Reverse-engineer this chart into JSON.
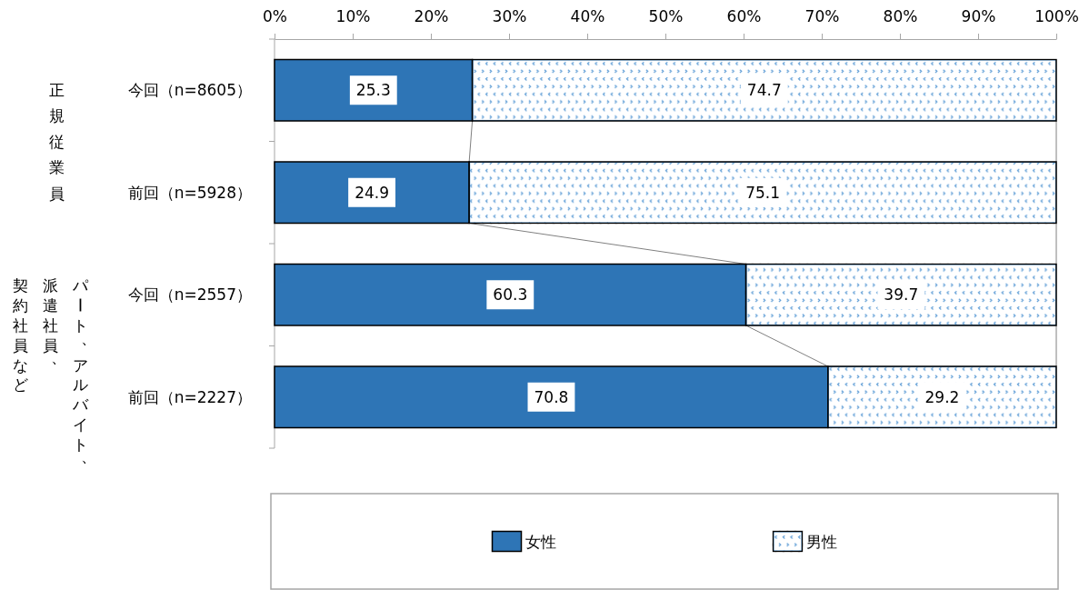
{
  "chart_data": {
    "type": "bar",
    "orientation": "horizontal",
    "stacked": true,
    "categories": [
      "今回（n=8605）",
      "前回（n=5928）",
      "今回（n=2557）",
      "前回（n=2227）"
    ],
    "series": [
      {
        "name": "女性",
        "color": "#2e75b6",
        "values": [
          25.3,
          24.9,
          60.3,
          70.8
        ]
      },
      {
        "name": "男性",
        "color": "#5b9bd5",
        "values": [
          74.7,
          75.1,
          39.7,
          29.2
        ]
      }
    ],
    "xlim": [
      0,
      100
    ],
    "xticks": [
      {
        "value": 0,
        "label": "0%"
      },
      {
        "value": 10,
        "label": "10%"
      },
      {
        "value": 20,
        "label": "20%"
      },
      {
        "value": 30,
        "label": "30%"
      },
      {
        "value": 40,
        "label": "40%"
      },
      {
        "value": 50,
        "label": "50%"
      },
      {
        "value": 60,
        "label": "60%"
      },
      {
        "value": 70,
        "label": "70%"
      },
      {
        "value": 80,
        "label": "80%"
      },
      {
        "value": 90,
        "label": "90%"
      },
      {
        "value": 100,
        "label": "100%"
      }
    ],
    "data_labels": true,
    "legend": "bottom",
    "annotations": [
      "正規従業員",
      "パート、アルバイト、",
      "派遣社員、",
      "契約社員など"
    ]
  }
}
